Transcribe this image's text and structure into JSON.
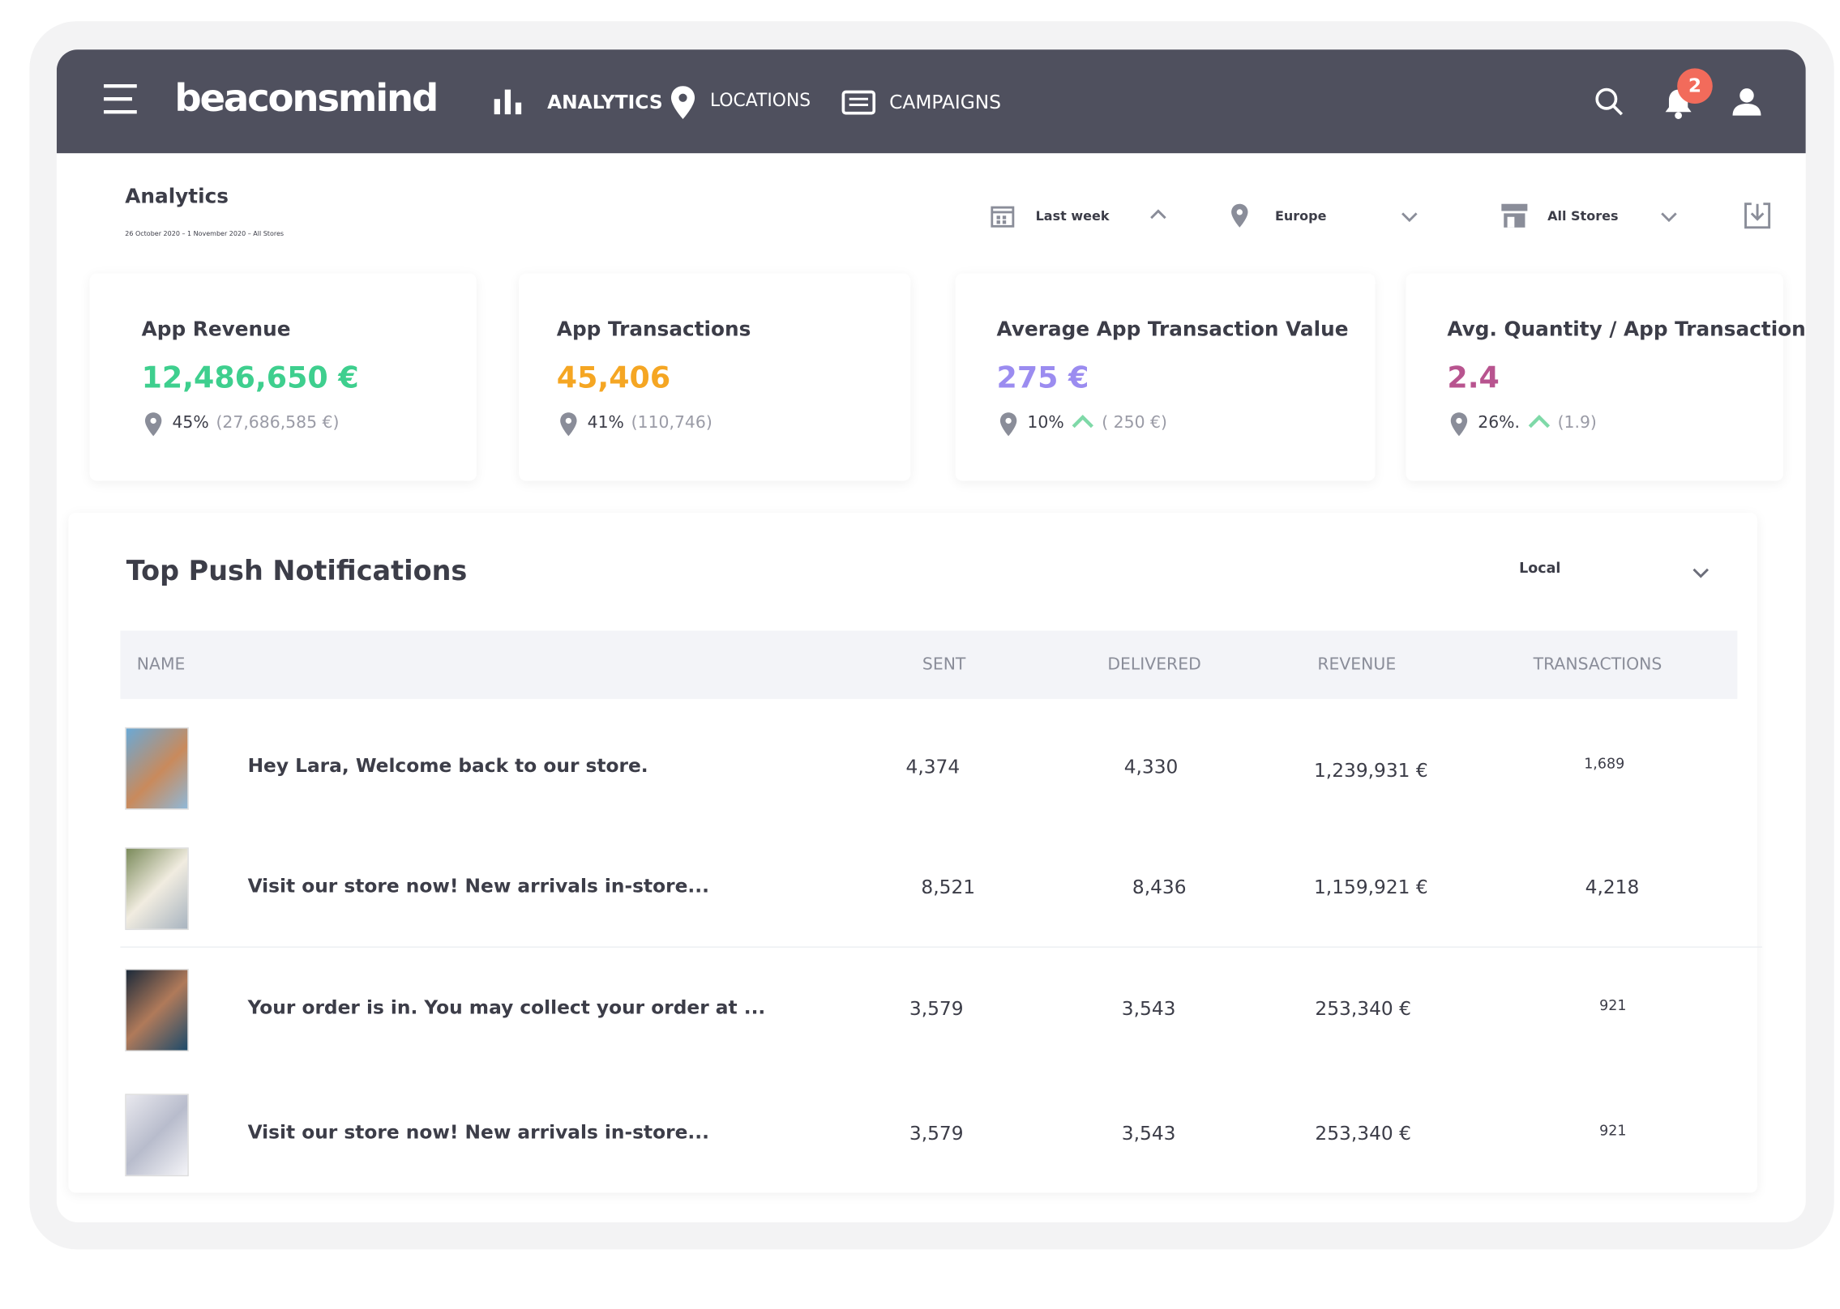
{
  "nav": {
    "logo": "beaconsmind",
    "items": [
      "ANALYTICS",
      "LOCATIONS",
      "CAMPAIGNS"
    ],
    "badge": "2"
  },
  "header": {
    "title": "Analytics",
    "subtitle": "26 October 2020 – 1 November 2020 – All Stores",
    "filters": [
      "Last week",
      "Europe",
      "All Stores"
    ]
  },
  "cards": [
    {
      "title": "App Revenue",
      "value": "12,486,650 €",
      "percent": "45%",
      "compare": "(27,686,585 €)"
    },
    {
      "title": "App Transactions",
      "value": "45,406",
      "percent": "41%",
      "compare": "(110,746)"
    },
    {
      "title": "Average App Transaction Value",
      "value": "275 €",
      "percent": "10%",
      "compare": "( 250 €)"
    },
    {
      "title": "Avg. Quantity / App Transaction",
      "value": "2.4",
      "percent": "26%.",
      "compare": "(1.9)"
    }
  ],
  "table": {
    "title": "Top Push Notifications",
    "scope": "Local",
    "columns": [
      "NAME",
      "SENT",
      "DELIVERED",
      "REVENUE",
      "TRANSACTIONS"
    ],
    "rows": [
      [
        "Hey Lara, Welcome back to our store.",
        "4,374",
        "4,330",
        "1,239,931 €",
        "1,689"
      ],
      [
        "Visit our store now! New arrivals in-store...",
        "8,521",
        "8,436",
        "1,159,921 €",
        "4,218"
      ],
      [
        "Your order is in. You may collect your order at ...",
        "3,579",
        "3,543",
        "253,340 €",
        "921"
      ],
      [
        "Visit our store now! New arrivals in-store...",
        "3,579",
        "3,543",
        "253,340 €",
        "921"
      ]
    ]
  }
}
